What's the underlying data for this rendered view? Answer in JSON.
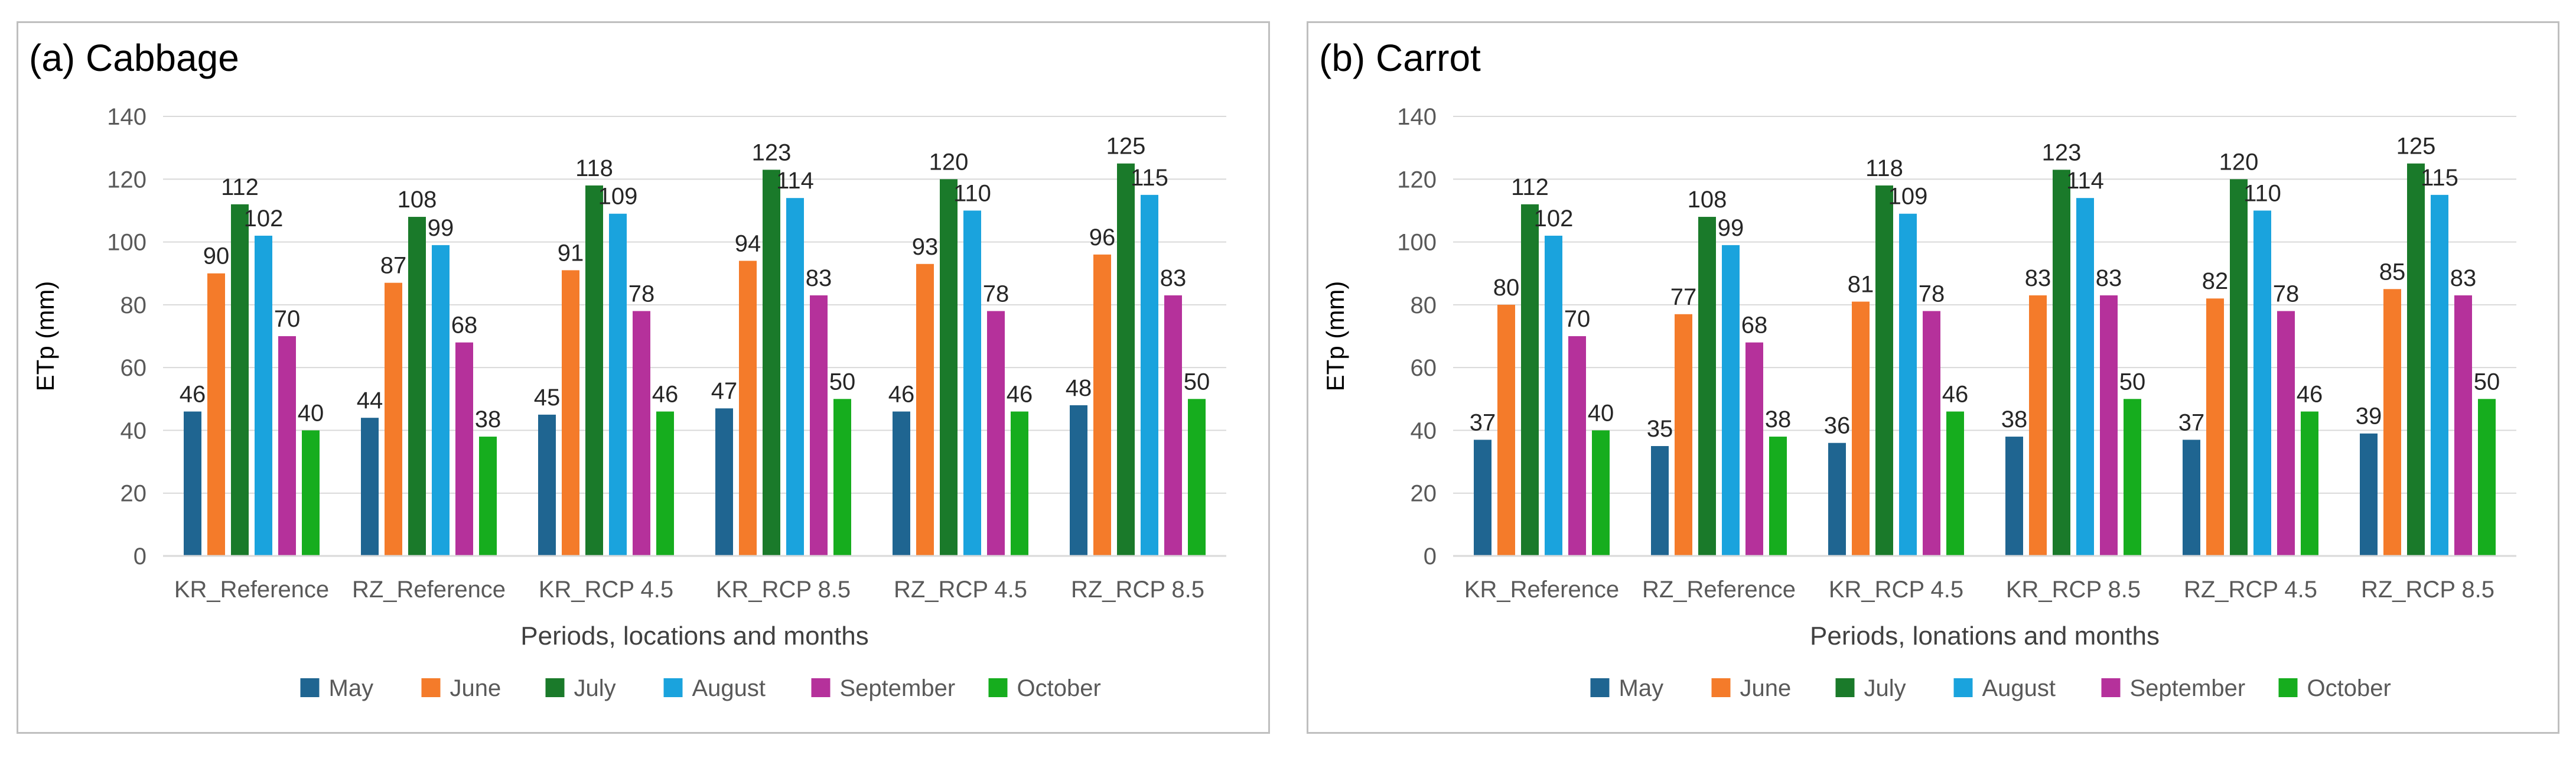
{
  "colors": {
    "May": "#1f6591",
    "June": "#f47b2a",
    "July": "#1a7a2a",
    "August": "#1aa3dd",
    "September": "#b5319b",
    "October": "#16ad1e"
  },
  "chart_data": [
    {
      "type": "bar",
      "title": "(a) Cabbage",
      "xlabel": "Periods, locations and months",
      "ylabel": "ETp (mm)",
      "ylim": [
        0,
        140
      ],
      "yticks": [
        0,
        20,
        40,
        60,
        80,
        100,
        120,
        140
      ],
      "categories": [
        "KR_Reference",
        "RZ_Reference",
        "KR_RCP 4.5",
        "KR_RCP 8.5",
        "RZ_RCP 4.5",
        "RZ_RCP 8.5"
      ],
      "legend": "bottom",
      "series": [
        {
          "name": "May",
          "values": [
            46,
            44,
            45,
            47,
            46,
            48
          ]
        },
        {
          "name": "June",
          "values": [
            90,
            87,
            91,
            94,
            93,
            96
          ]
        },
        {
          "name": "July",
          "values": [
            112,
            108,
            118,
            123,
            120,
            125
          ]
        },
        {
          "name": "August",
          "values": [
            102,
            99,
            109,
            114,
            110,
            115
          ]
        },
        {
          "name": "September",
          "values": [
            70,
            68,
            78,
            83,
            78,
            83
          ]
        },
        {
          "name": "October",
          "values": [
            40,
            38,
            46,
            50,
            46,
            50
          ]
        }
      ]
    },
    {
      "type": "bar",
      "title": "(b) Carrot",
      "xlabel": "Periods, lonations and months",
      "ylabel": "ETp (mm)",
      "ylim": [
        0,
        140
      ],
      "yticks": [
        0,
        20,
        40,
        60,
        80,
        100,
        120,
        140
      ],
      "categories": [
        "KR_Reference",
        "RZ_Reference",
        "KR_RCP 4.5",
        "KR_RCP 8.5",
        "RZ_RCP 4.5",
        "RZ_RCP 8.5"
      ],
      "legend": "bottom",
      "series": [
        {
          "name": "May",
          "values": [
            37,
            35,
            36,
            38,
            37,
            39
          ]
        },
        {
          "name": "June",
          "values": [
            80,
            77,
            81,
            83,
            82,
            85
          ]
        },
        {
          "name": "July",
          "values": [
            112,
            108,
            118,
            123,
            120,
            125
          ]
        },
        {
          "name": "August",
          "values": [
            102,
            99,
            109,
            114,
            110,
            115
          ]
        },
        {
          "name": "September",
          "values": [
            70,
            68,
            78,
            83,
            78,
            83
          ]
        },
        {
          "name": "October",
          "values": [
            40,
            38,
            46,
            50,
            46,
            50
          ]
        }
      ]
    }
  ]
}
